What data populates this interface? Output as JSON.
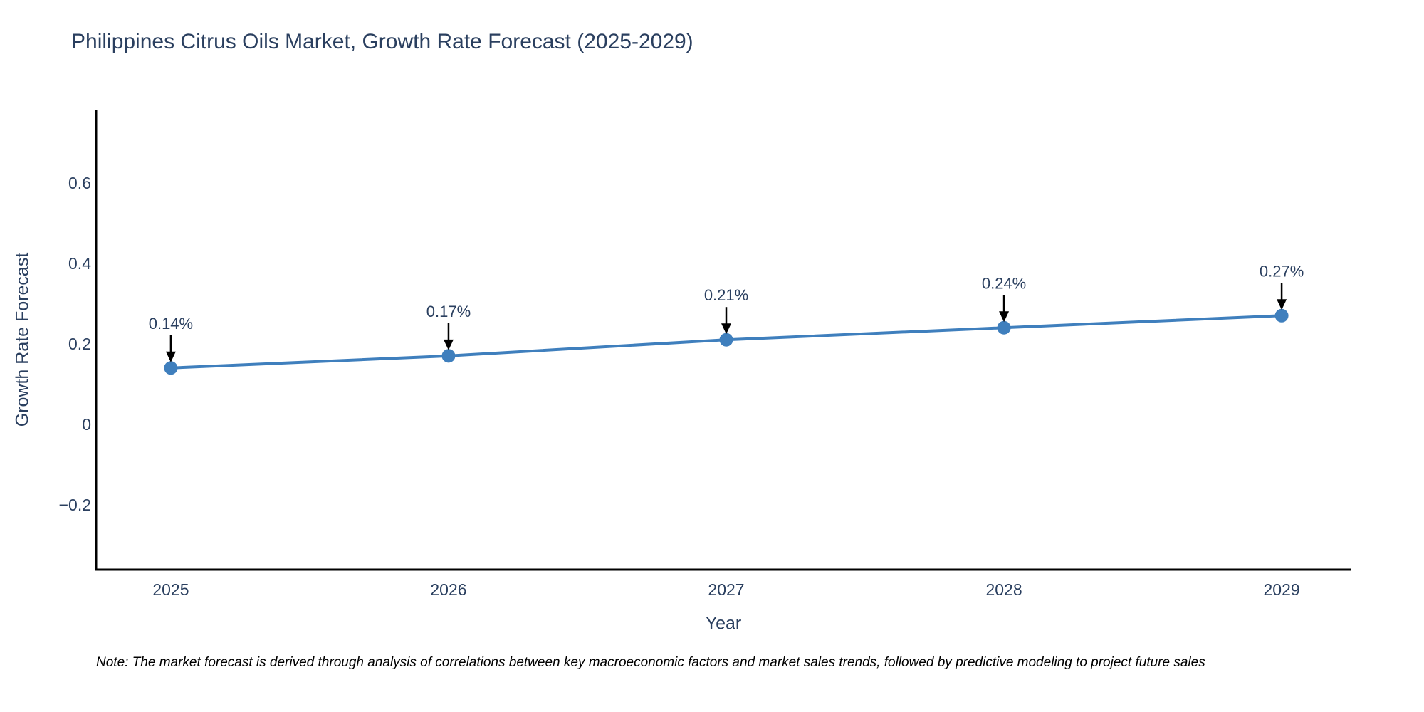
{
  "chart_data": {
    "type": "line",
    "title": "Philippines Citrus Oils Market, Growth Rate Forecast (2025-2029)",
    "xlabel": "Year",
    "ylabel": "Growth Rate Forecast",
    "x": [
      2025,
      2026,
      2027,
      2028,
      2029
    ],
    "y": [
      0.14,
      0.17,
      0.21,
      0.24,
      0.27
    ],
    "point_labels": [
      "0.14%",
      "0.17%",
      "0.21%",
      "0.24%",
      "0.27%"
    ],
    "xticks": {
      "values": [
        2025,
        2026,
        2027,
        2028,
        2029
      ],
      "labels": [
        "2025",
        "2026",
        "2027",
        "2028",
        "2029"
      ]
    },
    "yticks": {
      "values": [
        -0.2,
        0,
        0.2,
        0.4,
        0.6
      ],
      "labels": [
        "−0.2",
        "0",
        "0.2",
        "0.4",
        "0.6"
      ]
    },
    "xlim": [
      2024.731,
      2029.251
    ],
    "ylim": [
      -0.361,
      0.78
    ],
    "grid": false,
    "legend": "none",
    "annotations": "black down-arrows from each percentage label to its data point",
    "colors": {
      "line": "#3f7fbd",
      "marker": "#3f7fbd",
      "axis": "#000000",
      "tick_text": "#2a3f5f",
      "annotation_text": "#2a3f5f",
      "annotation_arrow": "#000000",
      "background": "#ffffff"
    }
  },
  "note": {
    "text": "Note: The market forecast is derived through analysis of correlations between key macroeconomic factors and market sales trends, followed by predictive modeling to project future sales"
  }
}
